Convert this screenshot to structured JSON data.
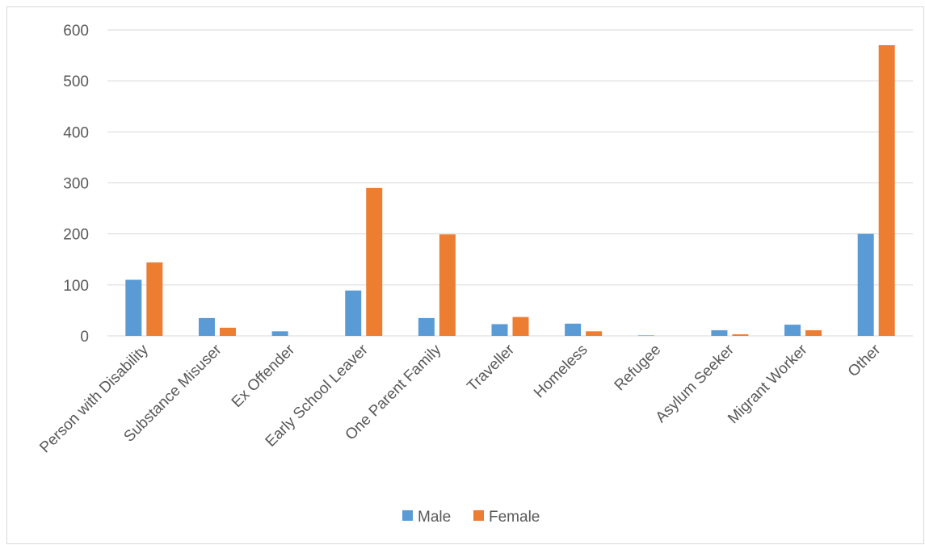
{
  "chart_data": {
    "type": "bar",
    "categories": [
      "Person with Disability",
      "Substance Misuser",
      "Ex Offender",
      "Early School Leaver",
      "One Parent Family",
      "Traveller",
      "Homeless",
      "Refugee",
      "Asylum Seeker",
      "Migrant Worker",
      "Other"
    ],
    "series": [
      {
        "name": "Male",
        "color": "#5B9BD5",
        "values": [
          110,
          35,
          9,
          89,
          35,
          23,
          24,
          1,
          11,
          22,
          200
        ]
      },
      {
        "name": "Female",
        "color": "#ED7D31",
        "values": [
          144,
          16,
          0,
          290,
          199,
          37,
          9,
          0,
          3,
          11,
          570
        ]
      }
    ],
    "title": "",
    "xlabel": "",
    "ylabel": "",
    "ylim": [
      0,
      600
    ],
    "yticks": [
      0,
      100,
      200,
      300,
      400,
      500,
      600
    ],
    "grid": true,
    "legend": "bottom"
  }
}
